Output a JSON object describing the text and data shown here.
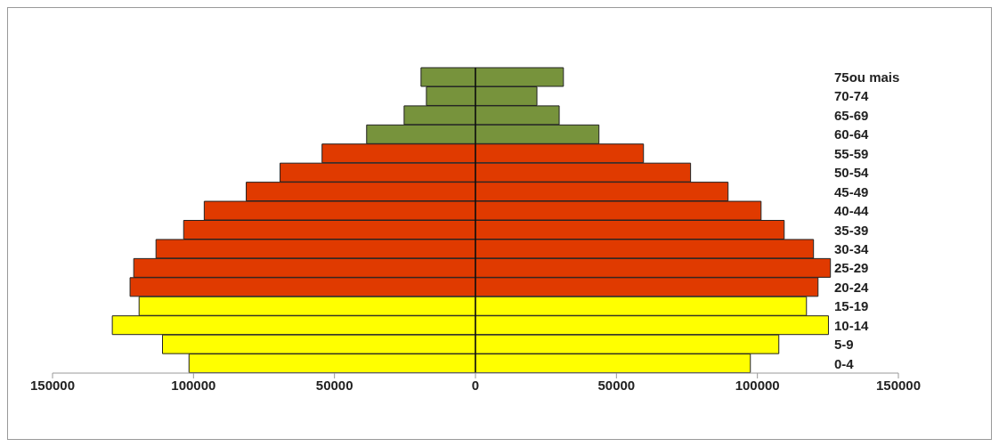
{
  "chart_data": {
    "type": "bar",
    "orientation": "horizontal",
    "stacked": true,
    "categories": [
      "75ou mais",
      "70-74",
      "65-69",
      "60-64",
      "55-59",
      "50-54",
      "45-49",
      "40-44",
      "35-39",
      "30-34",
      "25-29",
      "20-24",
      "15-19",
      "10-14",
      "5-9",
      "0-4"
    ],
    "series": [
      {
        "values": [
          -19300,
          -17400,
          -25300,
          -38600,
          -54400,
          -69300,
          -81300,
          -96200,
          -103500,
          -113300,
          -121200,
          -122500,
          -119300,
          -128800,
          -111000,
          -101600
        ],
        "colors": [
          "#77933c",
          "#77933c",
          "#77933c",
          "#77933c",
          "#e03a00",
          "#e03a00",
          "#e03a00",
          "#e03a00",
          "#e03a00",
          "#e03a00",
          "#e03a00",
          "#e03a00",
          "#ffff00",
          "#ffff00",
          "#ffff00",
          "#ffff00"
        ]
      },
      {
        "values": [
          31200,
          21800,
          29700,
          43800,
          59600,
          76300,
          89600,
          101300,
          109500,
          119900,
          125900,
          121500,
          117400,
          125200,
          107600,
          97500
        ],
        "colors": [
          "#77933c",
          "#77933c",
          "#77933c",
          "#77933c",
          "#e03a00",
          "#e03a00",
          "#e03a00",
          "#e03a00",
          "#e03a00",
          "#e03a00",
          "#e03a00",
          "#e03a00",
          "#ffff00",
          "#ffff00",
          "#ffff00",
          "#ffff00"
        ]
      }
    ],
    "xlim": [
      -150000,
      150000
    ],
    "xticks": [
      {
        "value": -150000,
        "label": "150000"
      },
      {
        "value": -100000,
        "label": "100000"
      },
      {
        "value": -50000,
        "label": "50000"
      },
      0,
      50000,
      100000,
      150000
    ],
    "ref_lines": [
      {
        "axis": "x",
        "value": 0,
        "color": "#000000"
      }
    ]
  }
}
